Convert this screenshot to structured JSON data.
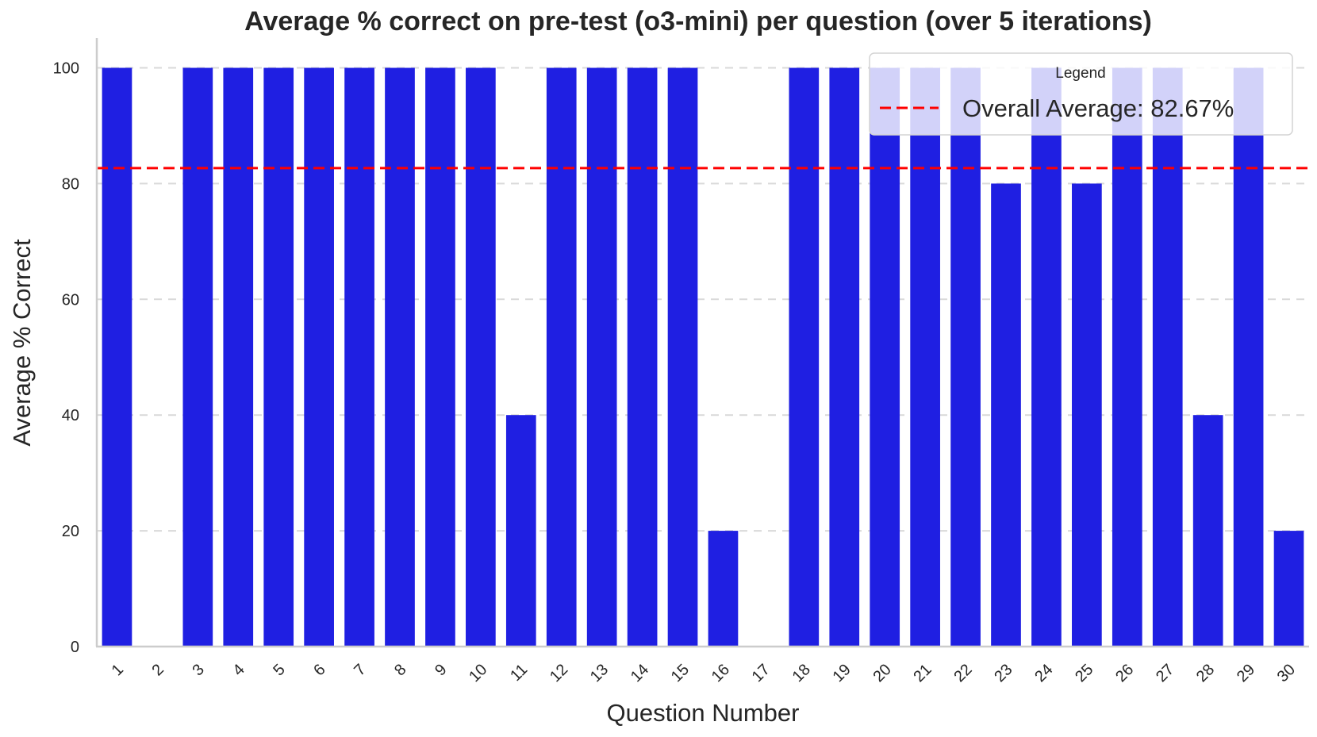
{
  "chart_data": {
    "type": "bar",
    "title": "Average % correct on pre-test (o3-mini) per question (over 5 iterations)",
    "xlabel": "Question Number",
    "ylabel": "Average % Correct",
    "categories": [
      "1",
      "2",
      "3",
      "4",
      "5",
      "6",
      "7",
      "8",
      "9",
      "10",
      "11",
      "12",
      "13",
      "14",
      "15",
      "16",
      "17",
      "18",
      "19",
      "20",
      "21",
      "22",
      "23",
      "24",
      "25",
      "26",
      "27",
      "28",
      "29",
      "30"
    ],
    "values": [
      100,
      0,
      100,
      100,
      100,
      100,
      100,
      100,
      100,
      100,
      40,
      100,
      100,
      100,
      100,
      20,
      0,
      100,
      100,
      100,
      100,
      100,
      80,
      100,
      80,
      100,
      100,
      40,
      100,
      20
    ],
    "ylim": [
      0,
      105
    ],
    "yticks": [
      "0",
      "20",
      "40",
      "60",
      "80",
      "100"
    ],
    "grid": "horizontal dashed",
    "reference_line": {
      "label": "Overall Average: 82.67%",
      "value": 82.67,
      "style": "dashed"
    },
    "legend": {
      "title": "Legend",
      "position": "upper right"
    },
    "colors": {
      "bar": "#1f1fe2",
      "reference": "#ff0000",
      "grid": "#d9d9d9",
      "axis": "#cccccc"
    }
  }
}
